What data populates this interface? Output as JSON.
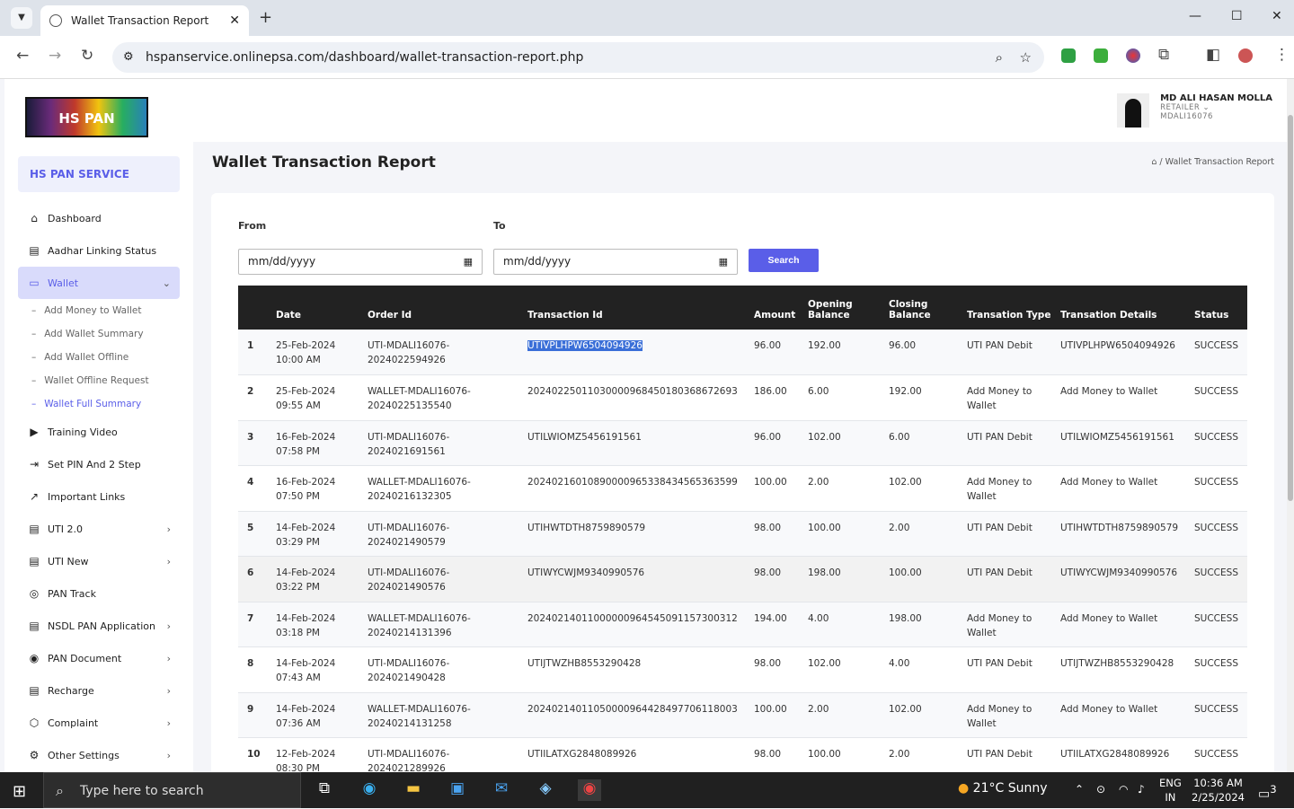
{
  "browser": {
    "tab_title": "Wallet Transaction Report",
    "url": "hspanservice.onlinepsa.com/dashboard/wallet-transaction-report.php"
  },
  "brand": {
    "logo_text": "HS PAN SERVICE",
    "name": "HS PAN SERVICE"
  },
  "sidebar": {
    "items": [
      {
        "label": "Dashboard",
        "icon": "home-icon"
      },
      {
        "label": "Aadhar Linking Status",
        "icon": "document-icon"
      },
      {
        "label": "Wallet",
        "icon": "wallet-icon",
        "active": true
      },
      {
        "label": "Training Video",
        "icon": "video-icon"
      },
      {
        "label": "Set PIN And 2 Step",
        "icon": "login-icon"
      },
      {
        "label": "Important Links",
        "icon": "external-link-icon"
      },
      {
        "label": "UTI 2.0",
        "icon": "document-icon"
      },
      {
        "label": "UTI New",
        "icon": "document-icon"
      },
      {
        "label": "PAN Track",
        "icon": "compass-icon"
      },
      {
        "label": "NSDL PAN Application",
        "icon": "document-icon"
      },
      {
        "label": "PAN Document",
        "icon": "location-icon"
      },
      {
        "label": "Recharge",
        "icon": "document-icon"
      },
      {
        "label": "Complaint",
        "icon": "box-icon"
      },
      {
        "label": "Other Settings",
        "icon": "gear-icon"
      }
    ],
    "wallet_sub": [
      "Add Money to Wallet",
      "Add Wallet Summary",
      "Add Wallet Offline",
      "Wallet Offline Request",
      "Wallet Full Summary"
    ]
  },
  "user": {
    "name": "MD ALI HASAN MOLLA",
    "role": "RETAILER ⌄",
    "id": "MDALI16076"
  },
  "page": {
    "title": "Wallet Transaction Report",
    "breadcrumb": "Wallet Transaction Report"
  },
  "filters": {
    "from_label": "From",
    "to_label": "To",
    "from_placeholder": "mm/dd/yyyy",
    "to_placeholder": "mm/dd/yyyy",
    "search_label": "Search"
  },
  "table": {
    "headers": [
      "",
      "Date",
      "Order Id",
      "Transaction Id",
      "Amount",
      "Opening Balance",
      "Closing Balance",
      "Transation Type",
      "Transation Details",
      "Status"
    ],
    "rows": [
      [
        "1",
        "25-Feb-2024 10:00 AM",
        "UTI-MDALI16076-2024022594926",
        "UTIVPLHPW6504094926",
        "96.00",
        "192.00",
        "96.00",
        "UTI PAN Debit",
        "UTIVPLHPW6504094926",
        "SUCCESS"
      ],
      [
        "2",
        "25-Feb-2024 09:55 AM",
        "WALLET-MDALI16076-20240225135540",
        "20240225011030000968450180368672693",
        "186.00",
        "6.00",
        "192.00",
        "Add Money to Wallet",
        "Add Money to Wallet",
        "SUCCESS"
      ],
      [
        "3",
        "16-Feb-2024 07:58 PM",
        "UTI-MDALI16076-2024021691561",
        "UTILWIOMZ5456191561",
        "96.00",
        "102.00",
        "6.00",
        "UTI PAN Debit",
        "UTILWIOMZ5456191561",
        "SUCCESS"
      ],
      [
        "4",
        "16-Feb-2024 07:50 PM",
        "WALLET-MDALI16076-20240216132305",
        "20240216010890000965338434565363599",
        "100.00",
        "2.00",
        "102.00",
        "Add Money to Wallet",
        "Add Money to Wallet",
        "SUCCESS"
      ],
      [
        "5",
        "14-Feb-2024 03:29 PM",
        "UTI-MDALI16076-2024021490579",
        "UTIHWTDTH8759890579",
        "98.00",
        "100.00",
        "2.00",
        "UTI PAN Debit",
        "UTIHWTDTH8759890579",
        "SUCCESS"
      ],
      [
        "6",
        "14-Feb-2024 03:22 PM",
        "UTI-MDALI16076-2024021490576",
        "UTIWYCWJM9340990576",
        "98.00",
        "198.00",
        "100.00",
        "UTI PAN Debit",
        "UTIWYCWJM9340990576",
        "SUCCESS"
      ],
      [
        "7",
        "14-Feb-2024 03:18 PM",
        "WALLET-MDALI16076-20240214131396",
        "20240214011000000964545091157300312",
        "194.00",
        "4.00",
        "198.00",
        "Add Money to Wallet",
        "Add Money to Wallet",
        "SUCCESS"
      ],
      [
        "8",
        "14-Feb-2024 07:43 AM",
        "UTI-MDALI16076-2024021490428",
        "UTIJTWZHB8553290428",
        "98.00",
        "102.00",
        "4.00",
        "UTI PAN Debit",
        "UTIJTWZHB8553290428",
        "SUCCESS"
      ],
      [
        "9",
        "14-Feb-2024 07:36 AM",
        "WALLET-MDALI16076-20240214131258",
        "20240214011050000964428497706118003",
        "100.00",
        "2.00",
        "102.00",
        "Add Money to Wallet",
        "Add Money to Wallet",
        "SUCCESS"
      ],
      [
        "10",
        "12-Feb-2024 08:30 PM",
        "UTI-MDALI16076-2024021289926",
        "UTIILATXG2848089926",
        "98.00",
        "100.00",
        "2.00",
        "UTI PAN Debit",
        "UTIILATXG2848089926",
        "SUCCESS"
      ]
    ]
  },
  "taskbar": {
    "search_placeholder": "Type here to search",
    "weather": "21°C  Sunny",
    "lang": "ENG",
    "region": "IN",
    "time": "10:36 AM",
    "date": "2/25/2024",
    "notifications": "3"
  },
  "colors": {
    "accent": "#5a5ee8",
    "table_header": "#222222"
  }
}
